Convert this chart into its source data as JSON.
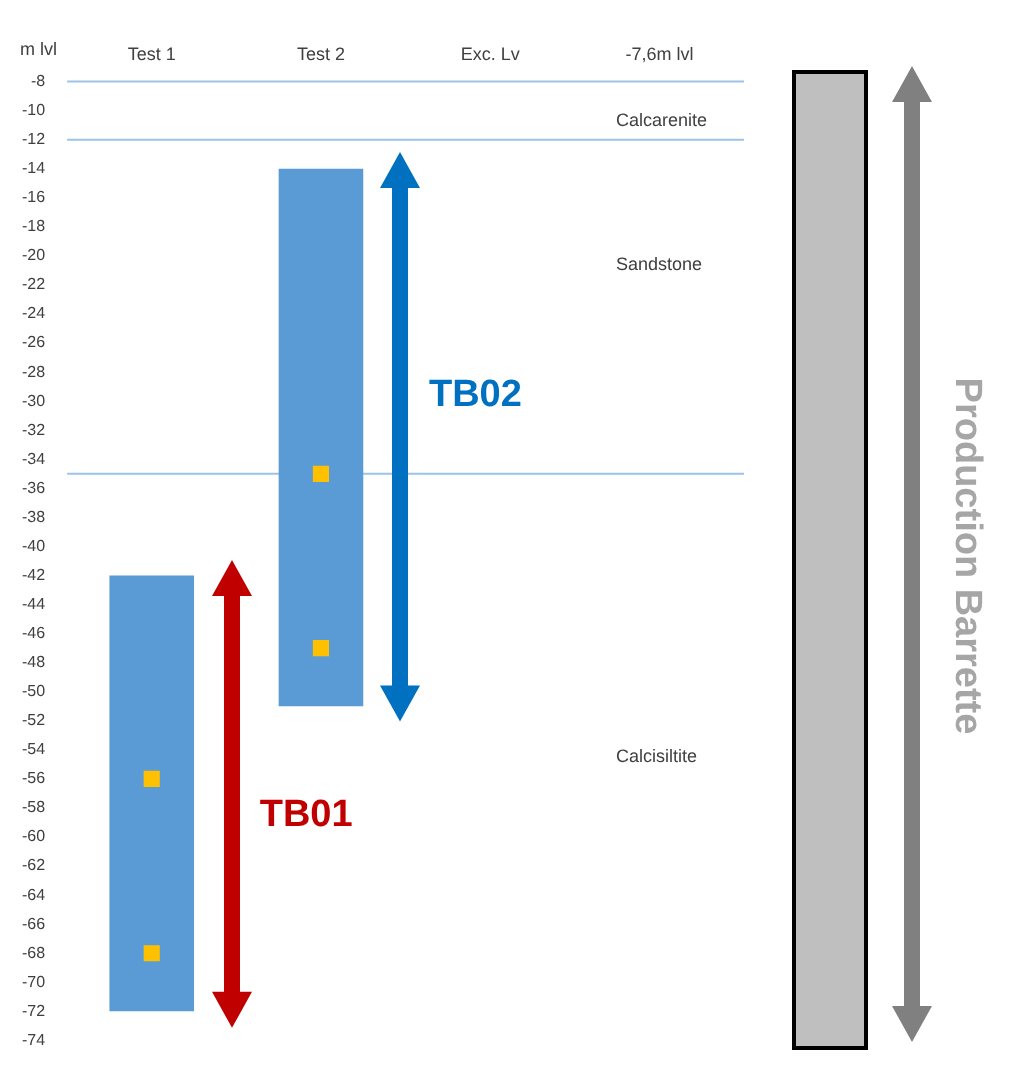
{
  "chart_data": {
    "type": "bar",
    "ylabel": "m lvl",
    "categories": [
      "Test 1",
      "Test 2",
      "Exc. Lv",
      "-7,6m lvl"
    ],
    "series": [
      {
        "type": "bar",
        "color": "#5b9bd5",
        "base": [
          -72,
          -51,
          null,
          null
        ],
        "values": [
          30,
          37,
          null,
          null
        ]
      },
      {
        "type": "scatter",
        "color": "#ffc000",
        "marker": "square",
        "x": [
          "Test 1",
          "Test 1",
          "Test 2",
          "Test 2"
        ],
        "values": [
          -56,
          -68,
          -35,
          -47
        ]
      }
    ],
    "ylim": [
      -74,
      -8
    ],
    "yticks": [
      -8,
      -10,
      -12,
      -14,
      -16,
      -18,
      -20,
      -22,
      -24,
      -26,
      -28,
      -30,
      -32,
      -34,
      -36,
      -38,
      -40,
      -42,
      -44,
      -46,
      -48,
      -50,
      -52,
      -54,
      -56,
      -58,
      -60,
      -62,
      -64,
      -66,
      -68,
      -70,
      -72,
      -74
    ],
    "grid": false,
    "legend": false,
    "ref_lines": [
      {
        "axis": "y",
        "value": -8,
        "color": "#9dc3e6"
      },
      {
        "axis": "y",
        "value": -12,
        "color": "#9dc3e6"
      },
      {
        "axis": "y",
        "value": -35,
        "color": "#9dc3e6"
      }
    ],
    "annotations": [
      "Calcarenite",
      "Sandstone",
      "Calcisiltite",
      "TB01",
      "TB02",
      "Production Barrette"
    ]
  }
}
